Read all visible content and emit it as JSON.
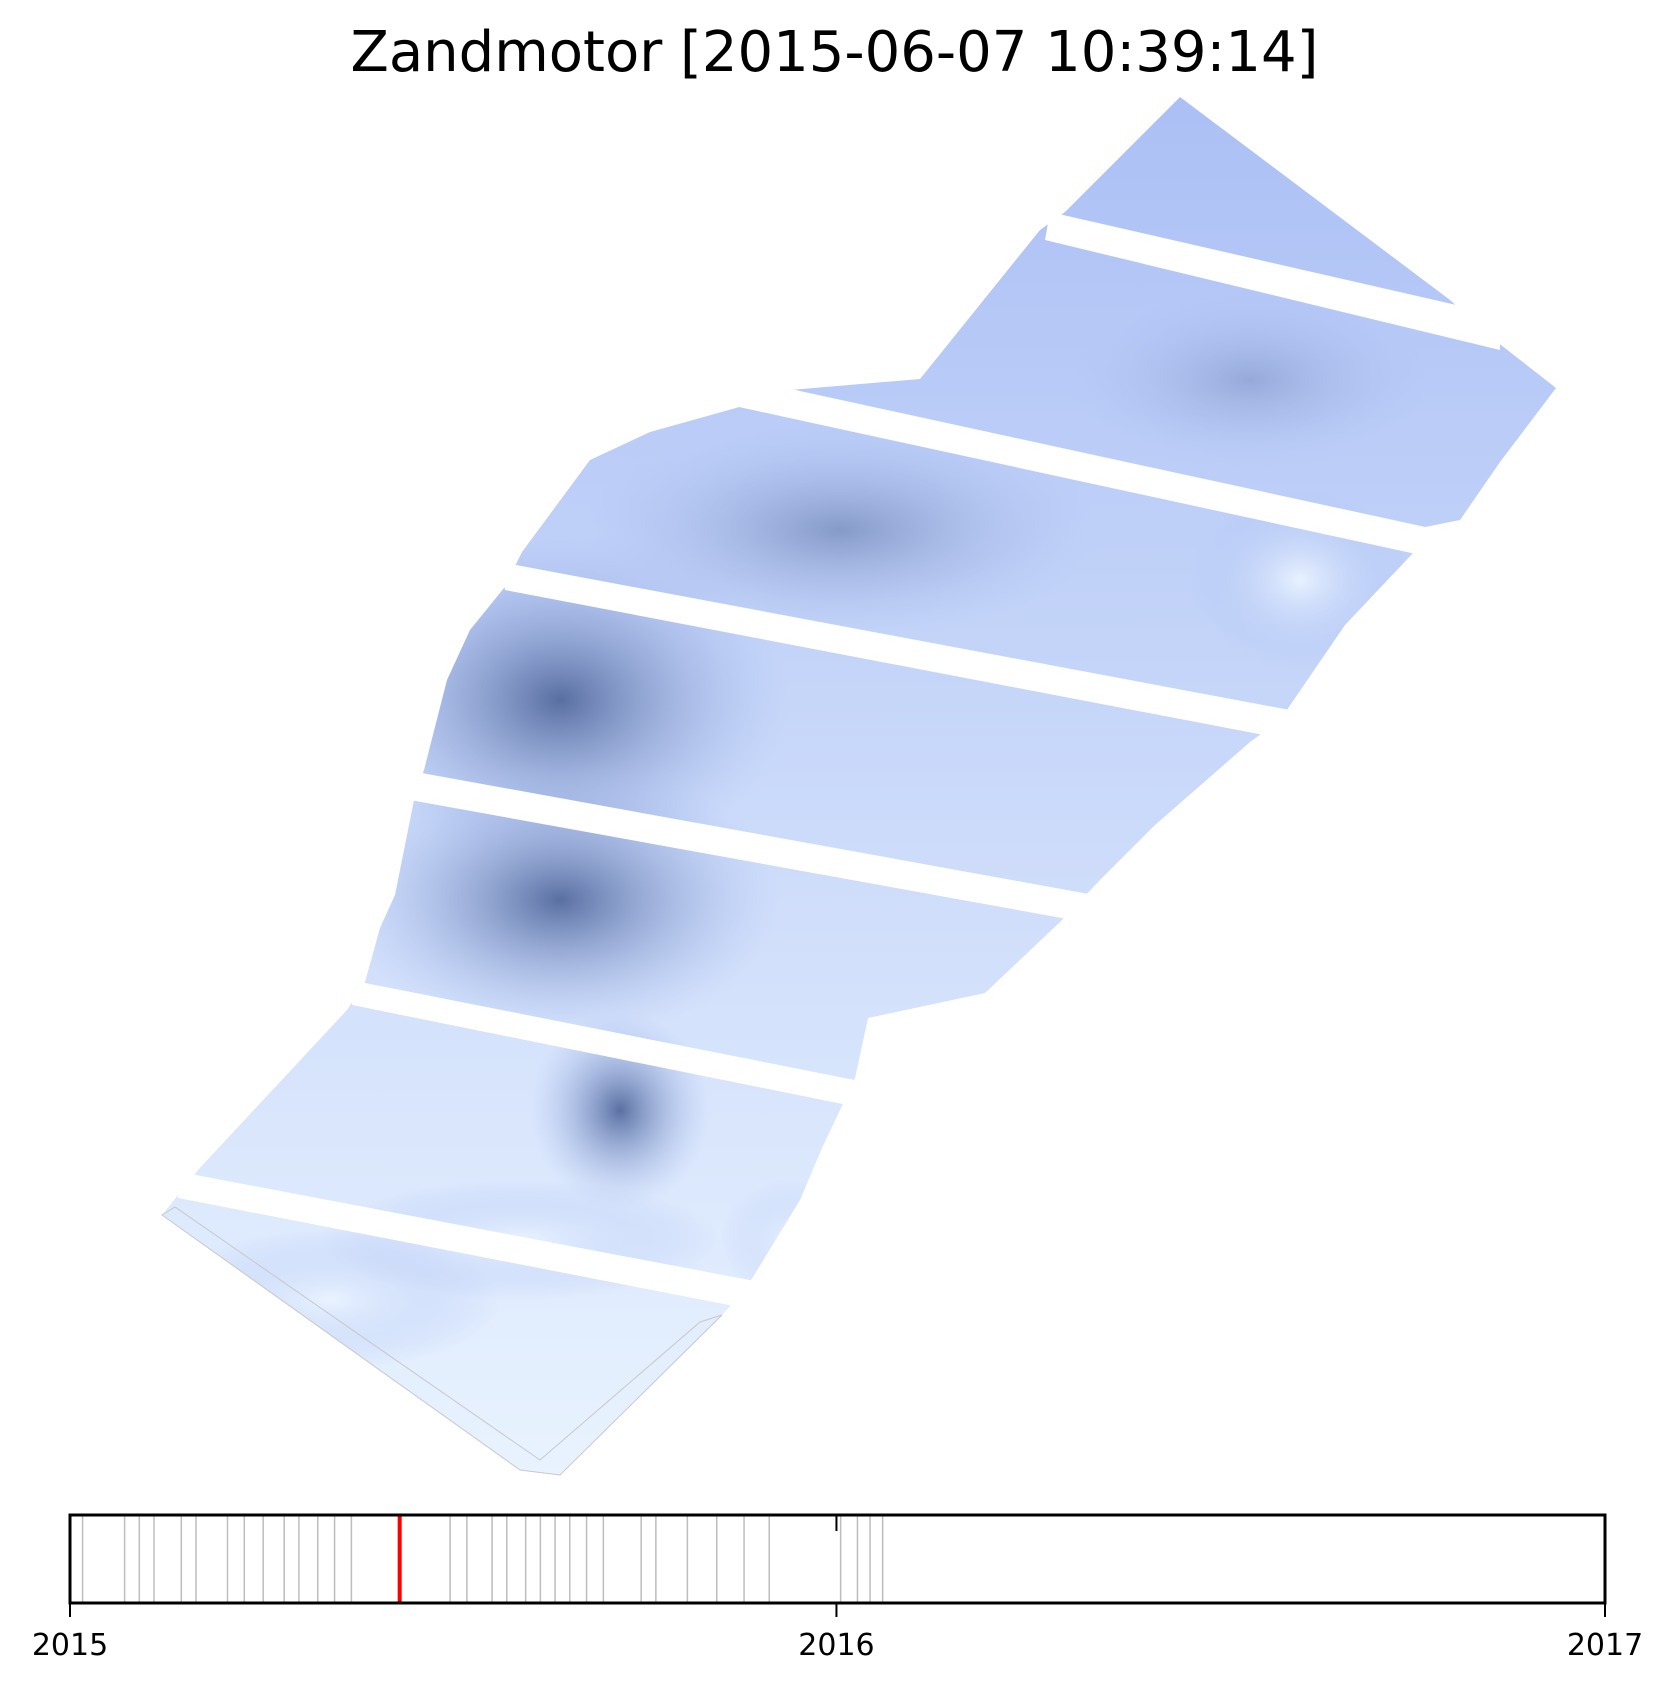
{
  "chart_data": {
    "type": "heatmap",
    "title": "Zandmotor [2015-06-07 10:39:14]",
    "current_date": "2015-06-07",
    "colors": {
      "light": "#eaf4ff",
      "mid": "#a7bcf4",
      "dark": "#5a72a8",
      "deep": "#4c6397",
      "current_marker": "#ff0000",
      "survey_marker": "#bdbdbd"
    },
    "timeline": {
      "start": "2015-01-01",
      "end": "2017-01-01",
      "tick_labels": [
        "2015",
        "2016",
        "2017"
      ],
      "tick_dates": [
        "2015-01-01",
        "2016-01-01",
        "2017-01-01"
      ],
      "survey_dates": [
        "2015-01-07",
        "2015-01-27",
        "2015-02-03",
        "2015-02-10",
        "2015-02-23",
        "2015-03-02",
        "2015-03-17",
        "2015-03-25",
        "2015-04-03",
        "2015-04-13",
        "2015-04-20",
        "2015-04-29",
        "2015-05-07",
        "2015-05-15",
        "2015-06-07",
        "2015-07-01",
        "2015-07-09",
        "2015-07-21",
        "2015-07-28",
        "2015-08-06",
        "2015-08-13",
        "2015-08-20",
        "2015-08-27",
        "2015-09-04",
        "2015-09-12",
        "2015-09-30",
        "2015-10-07",
        "2015-10-22",
        "2015-11-05",
        "2015-11-18",
        "2015-11-30",
        "2016-01-03",
        "2016-01-11",
        "2016-01-17",
        "2016-01-23"
      ]
    }
  }
}
